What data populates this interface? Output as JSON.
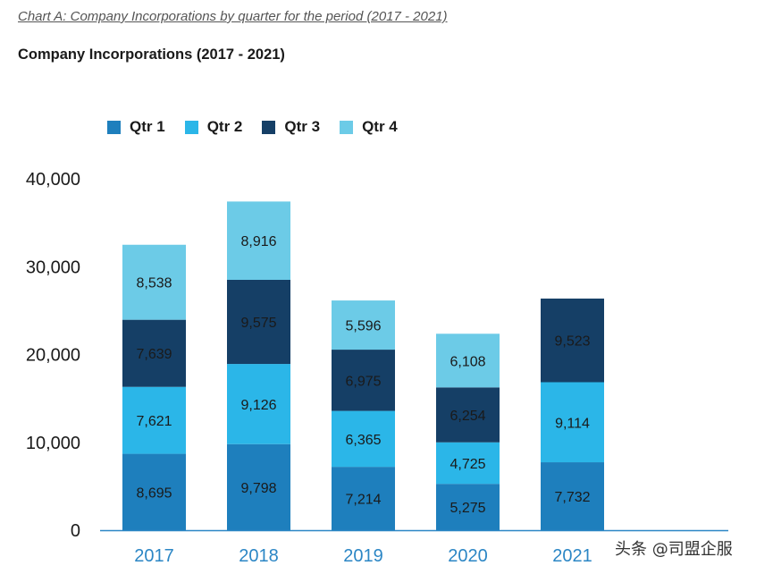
{
  "caption": "Chart A: Company Incorporations by quarter for the period (2017 - 2021)",
  "watermark": "头条 @司盟企服",
  "colors": {
    "q1": "#1e7fbd",
    "q2": "#2bb6e8",
    "q3": "#153f66",
    "q4": "#6ccbe7",
    "x_tick": "#2b86c5",
    "y_tick": "#1a1a1a",
    "label_text": "#1a1a1a"
  },
  "chart_data": {
    "type": "bar",
    "stacked": true,
    "title": "Company Incorporations (2017 - 2021)",
    "categories": [
      "2017",
      "2018",
      "2019",
      "2020",
      "2021"
    ],
    "series": [
      {
        "name": "Qtr 1",
        "values": [
          8695,
          9798,
          7214,
          5275,
          7732
        ]
      },
      {
        "name": "Qtr 2",
        "values": [
          7621,
          9126,
          6365,
          4725,
          9114
        ]
      },
      {
        "name": "Qtr 3",
        "values": [
          7639,
          9575,
          6975,
          6254,
          9523
        ]
      },
      {
        "name": "Qtr 4",
        "values": [
          8538,
          8916,
          5596,
          6108,
          null
        ]
      }
    ],
    "data_labels": [
      [
        "8,695",
        "9,798",
        "7,214",
        "5,275",
        "7,732"
      ],
      [
        "7,621",
        "9,126",
        "6,365",
        "4,725",
        "9,114"
      ],
      [
        "7,639",
        "9,575",
        "6,975",
        "6,254",
        "9,523"
      ],
      [
        "8,538",
        "8,916",
        "5,596",
        "6,108",
        null
      ]
    ],
    "ylim": [
      0,
      40000
    ],
    "yticks": [
      0,
      10000,
      20000,
      30000,
      40000
    ],
    "ytick_labels": [
      "0",
      "10,000",
      "20,000",
      "30,000",
      "40,000"
    ],
    "xlabel": "",
    "ylabel": "",
    "grid": false,
    "legend_position": "top"
  }
}
